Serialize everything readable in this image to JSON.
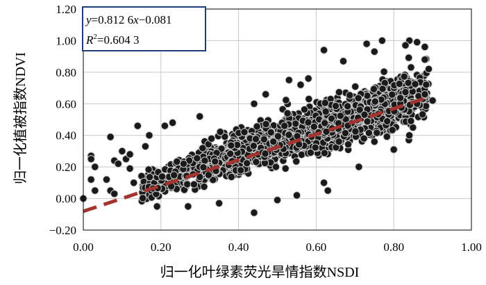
{
  "chart_data": {
    "type": "scatter",
    "title": "",
    "xlabel": "归一化叶绿素荧光旱情指数NSDI",
    "ylabel": "归一化植被指数NDVI",
    "xlim": [
      0.0,
      1.0
    ],
    "ylim": [
      -0.2,
      1.2
    ],
    "x_ticks": [
      "0.00",
      "0.20",
      "0.40",
      "0.60",
      "0.80",
      "1.00"
    ],
    "y_ticks": [
      "−0.20",
      "0.00",
      "0.20",
      "0.40",
      "0.60",
      "0.80",
      "1.00",
      "1.20"
    ],
    "grid": true,
    "marker_color": "#1a1a1a",
    "marker_edge_color": "#cfcfcf",
    "regression": {
      "slope": 0.8126,
      "intercept": -0.081,
      "r2": 0.6043,
      "x_range": [
        0.0,
        0.89
      ],
      "color": "#a3342f",
      "style": "dashed"
    },
    "annotation": {
      "line1_y": "y",
      "line1_eq": "=0.812 6",
      "line1_x": "x",
      "line1_tail": "−0.081",
      "line2_r": "R",
      "line2_sup": "2",
      "line2_val": "=0.604 3",
      "border_color": "#1f3d7a"
    },
    "outliers": [
      [
        0.0,
        0.0
      ],
      [
        0.02,
        0.27
      ],
      [
        0.02,
        0.25
      ],
      [
        0.03,
        0.2
      ],
      [
        0.02,
        0.12
      ],
      [
        0.03,
        0.05
      ],
      [
        0.07,
        0.39
      ],
      [
        0.08,
        0.24
      ],
      [
        0.09,
        0.22
      ],
      [
        0.06,
        0.12
      ],
      [
        0.07,
        0.05
      ],
      [
        0.08,
        0.03
      ],
      [
        0.1,
        0.3
      ],
      [
        0.11,
        0.25
      ],
      [
        0.12,
        0.28
      ],
      [
        0.12,
        0.19
      ],
      [
        0.14,
        0.46
      ],
      [
        0.13,
        0.1
      ],
      [
        0.17,
        0.4
      ],
      [
        0.16,
        0.33
      ],
      [
        0.21,
        0.46
      ],
      [
        0.23,
        0.48
      ],
      [
        0.44,
        -0.09
      ],
      [
        0.27,
        -0.05
      ],
      [
        0.62,
        0.94
      ],
      [
        0.73,
        0.98
      ],
      [
        0.75,
        0.93
      ],
      [
        0.77,
        1.0
      ],
      [
        0.84,
        1.0
      ],
      [
        0.86,
        0.99
      ],
      [
        0.83,
        0.97
      ],
      [
        0.88,
        0.96
      ],
      [
        0.88,
        0.88
      ],
      [
        0.89,
        0.82
      ],
      [
        0.86,
        0.6
      ],
      [
        0.84,
        0.4
      ],
      [
        0.8,
        0.31
      ],
      [
        0.75,
        0.36
      ],
      [
        0.71,
        0.2
      ],
      [
        0.62,
        0.1
      ],
      [
        0.55,
        0.02
      ],
      [
        0.5,
        -0.01
      ],
      [
        0.58,
        0.76
      ],
      [
        0.53,
        0.75
      ],
      [
        0.56,
        0.72
      ],
      [
        0.44,
        0.6
      ],
      [
        0.9,
        0.62
      ],
      [
        0.88,
        0.66
      ],
      [
        0.63,
        0.05
      ],
      [
        0.35,
        -0.03
      ],
      [
        0.19,
        -0.05
      ],
      [
        0.3,
        0.52
      ],
      [
        0.47,
        0.66
      ],
      [
        0.67,
        0.87
      ]
    ]
  }
}
